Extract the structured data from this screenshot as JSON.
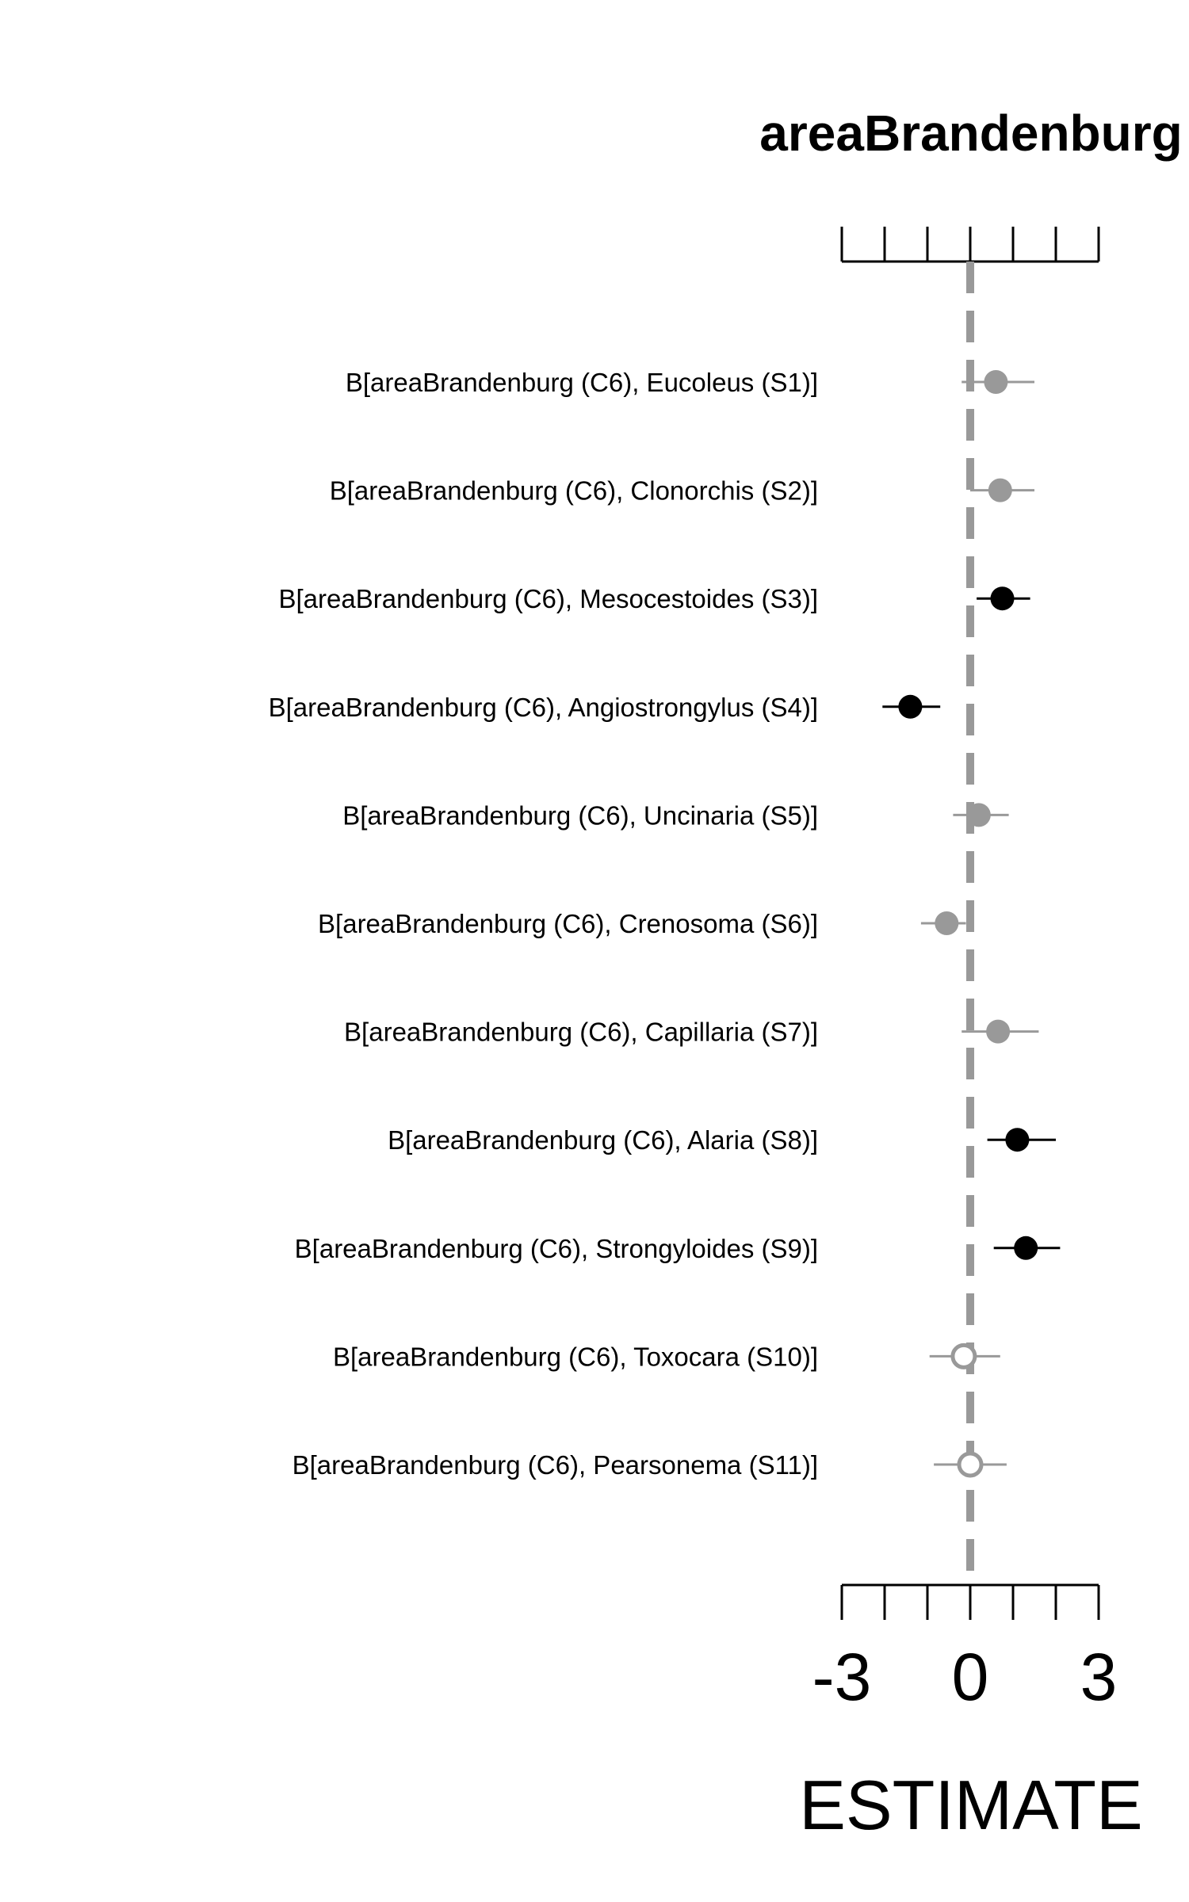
{
  "chart_data": {
    "type": "scatter",
    "title": "areaBrandenburg",
    "xlabel": "ESTIMATE",
    "xlim": [
      -3,
      3
    ],
    "x_ticks": [
      -3,
      -2,
      -1,
      0,
      1,
      2,
      3
    ],
    "x_tick_labels": [
      "-3",
      "0",
      "3"
    ],
    "reference_line": 0,
    "colors": {
      "significant": "#000000",
      "non_significant": "#999999",
      "reference": "#999999",
      "axis": "#000000"
    },
    "points": [
      {
        "label": "B[areaBrandenburg (C6), Eucoleus (S1)]",
        "estimate": 0.6,
        "lower": -0.2,
        "upper": 1.5,
        "style": "filled-grey"
      },
      {
        "label": "B[areaBrandenburg (C6), Clonorchis (S2)]",
        "estimate": 0.7,
        "lower": 0.0,
        "upper": 1.5,
        "style": "filled-grey"
      },
      {
        "label": "B[areaBrandenburg (C6), Mesocestoides (S3)]",
        "estimate": 0.75,
        "lower": 0.15,
        "upper": 1.4,
        "style": "filled-black"
      },
      {
        "label": "B[areaBrandenburg (C6), Angiostrongylus (S4)]",
        "estimate": -1.4,
        "lower": -2.05,
        "upper": -0.7,
        "style": "filled-black"
      },
      {
        "label": "B[areaBrandenburg (C6), Uncinaria (S5)]",
        "estimate": 0.2,
        "lower": -0.4,
        "upper": 0.9,
        "style": "filled-grey"
      },
      {
        "label": "B[areaBrandenburg (C6), Crenosoma (S6)]",
        "estimate": -0.55,
        "lower": -1.15,
        "upper": -0.1,
        "style": "filled-grey"
      },
      {
        "label": "B[areaBrandenburg (C6), Capillaria (S7)]",
        "estimate": 0.65,
        "lower": -0.2,
        "upper": 1.6,
        "style": "filled-grey"
      },
      {
        "label": "B[areaBrandenburg (C6), Alaria (S8)]",
        "estimate": 1.1,
        "lower": 0.4,
        "upper": 2.0,
        "style": "filled-black"
      },
      {
        "label": "B[areaBrandenburg (C6), Strongyloides (S9)]",
        "estimate": 1.3,
        "lower": 0.55,
        "upper": 2.1,
        "style": "filled-black"
      },
      {
        "label": "B[areaBrandenburg (C6), Toxocara (S10)]",
        "estimate": -0.15,
        "lower": -0.95,
        "upper": 0.7,
        "style": "open-grey"
      },
      {
        "label": "B[areaBrandenburg (C6), Pearsonema (S11)]",
        "estimate": 0.0,
        "lower": -0.85,
        "upper": 0.85,
        "style": "open-grey"
      }
    ]
  }
}
